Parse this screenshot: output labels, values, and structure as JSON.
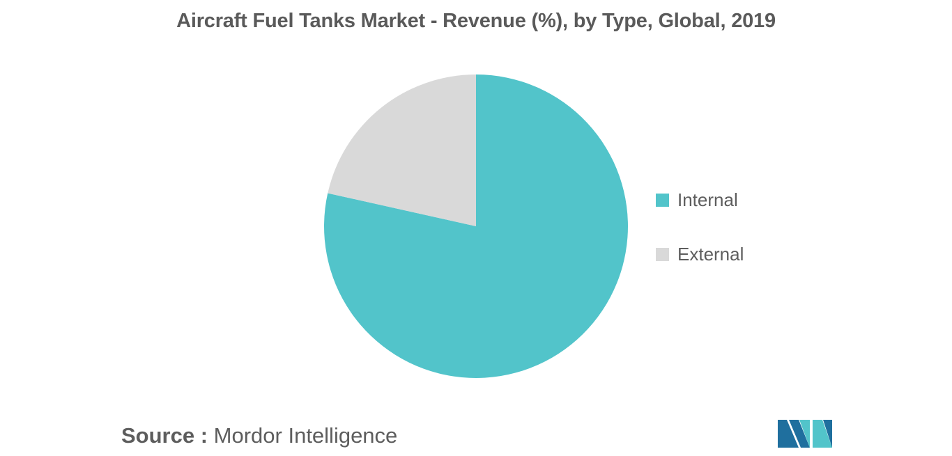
{
  "chart_data": {
    "type": "pie",
    "title": "Aircraft Fuel Tanks Market - Revenue (%), by Type, Global, 2019",
    "slices": [
      {
        "label": "Internal",
        "value": 78.5,
        "color": "#52c4ca"
      },
      {
        "label": "External",
        "value": 21.5,
        "color": "#d9d9d9"
      }
    ],
    "legend_position": "right"
  },
  "source": {
    "label": "Source :",
    "text": "Mordor Intelligence"
  },
  "logo": {
    "name": "Mordor Intelligence logo",
    "colors": [
      "#1f6f9e",
      "#52c4ca"
    ]
  }
}
